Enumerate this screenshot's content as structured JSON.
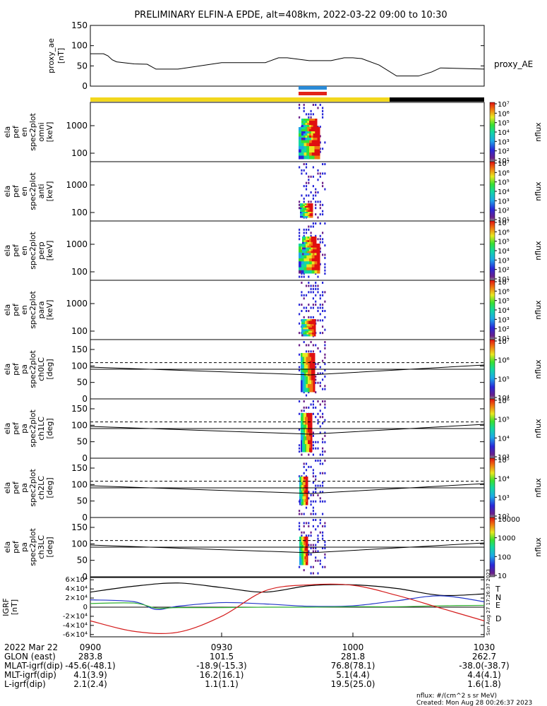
{
  "title": "PRELIMINARY ELFIN-A EPDE, alt=408km, 2022-03-22 09:00 to 10:30",
  "colors": {
    "orbit_sunlit": "#f2d71c",
    "orbit_shadow": "#000000",
    "sci_blue": "#2a8bd8",
    "sci_red": "#e2231a",
    "grf_total": "#000000",
    "grf_N": "#2235c8",
    "grf_E": "#2fb02f",
    "grf_D": "#d41c1c"
  },
  "chart_data": [
    {
      "type": "line",
      "panel": "proxy_ae",
      "ylabel_lines": [
        "proxy_ae",
        "[nT]"
      ],
      "ylim": [
        0,
        150
      ],
      "yticks": [
        "0",
        "50",
        "100",
        "150"
      ],
      "series": [
        {
          "name": "proxy_AE",
          "x": [
            0,
            2,
            3,
            4,
            5,
            6,
            10,
            13,
            15,
            17,
            20,
            30,
            33,
            35,
            40,
            43,
            45,
            50,
            55,
            58,
            60,
            62,
            66,
            70,
            75,
            78,
            80,
            90
          ],
          "y": [
            80,
            80,
            80,
            75,
            65,
            60,
            55,
            54,
            42,
            42,
            42,
            58,
            58,
            58,
            58,
            70,
            70,
            63,
            63,
            70,
            70,
            68,
            52,
            25,
            25,
            35,
            45,
            42
          ]
        }
      ]
    },
    {
      "type": "heatmap",
      "panel": "omni",
      "ylabel_lines": [
        "ela",
        "pef",
        "en",
        "spec2plot",
        "omni",
        "[keV]"
      ],
      "yticks": [
        "100",
        "1000"
      ],
      "colorbar": {
        "label": "nflux",
        "ticks": [
          "10¹",
          "10²",
          "10³",
          "10⁴",
          "10⁵",
          "10⁶",
          "10⁷"
        ]
      }
    },
    {
      "type": "heatmap",
      "panel": "anti",
      "ylabel_lines": [
        "ela",
        "pef",
        "en",
        "spec2plot",
        "anti",
        "[keV]"
      ],
      "yticks": [
        "100",
        "1000"
      ],
      "colorbar": {
        "label": "nflux",
        "ticks": [
          "10¹",
          "10²",
          "10³",
          "10⁴",
          "10⁵",
          "10⁶",
          "10⁷"
        ]
      }
    },
    {
      "type": "heatmap",
      "panel": "perp",
      "ylabel_lines": [
        "ela",
        "pef",
        "en",
        "spec2plot",
        "perp",
        "[keV]"
      ],
      "yticks": [
        "100",
        "1000"
      ],
      "colorbar": {
        "label": "nflux",
        "ticks": [
          "10¹",
          "10²",
          "10³",
          "10⁴",
          "10⁵",
          "10⁶",
          "10⁷"
        ]
      }
    },
    {
      "type": "heatmap",
      "panel": "para",
      "ylabel_lines": [
        "ela",
        "pef",
        "en",
        "spec2plot",
        "para",
        "[keV]"
      ],
      "yticks": [
        "100",
        "1000"
      ],
      "colorbar": {
        "label": "nflux",
        "ticks": [
          "10¹",
          "10²",
          "10³",
          "10⁴",
          "10⁵",
          "10⁶",
          "10⁷"
        ]
      }
    },
    {
      "type": "heatmap",
      "panel": "ch0LC",
      "ylabel_lines": [
        "ela",
        "pef",
        "pa",
        "spec2plot",
        "ch0LC",
        "[deg]"
      ],
      "ylim": [
        0,
        180
      ],
      "yticks": [
        "0",
        "50",
        "100",
        "150"
      ],
      "colorbar": {
        "label": "nflux",
        "ticks": [
          "10⁴",
          "10⁵",
          "10⁶",
          "10⁷"
        ]
      }
    },
    {
      "type": "heatmap",
      "panel": "ch1LC",
      "ylabel_lines": [
        "ela",
        "pef",
        "pa",
        "spec2plot",
        "ch1LC",
        "[deg]"
      ],
      "ylim": [
        0,
        180
      ],
      "yticks": [
        "0",
        "50",
        "100",
        "150"
      ],
      "colorbar": {
        "label": "nflux",
        "ticks": [
          "10³",
          "10⁴",
          "10⁵",
          "10⁶"
        ]
      }
    },
    {
      "type": "heatmap",
      "panel": "ch2LC",
      "ylabel_lines": [
        "ela",
        "pef",
        "pa",
        "spec2plot",
        "ch2LC",
        "[deg]"
      ],
      "ylim": [
        0,
        180
      ],
      "yticks": [
        "0",
        "50",
        "100",
        "150"
      ],
      "colorbar": {
        "label": "nflux",
        "ticks": [
          "10²",
          "10³",
          "10⁴",
          "10⁵"
        ]
      }
    },
    {
      "type": "heatmap",
      "panel": "ch3LC",
      "ylabel_lines": [
        "ela",
        "pef",
        "pa",
        "spec2plot",
        "ch3LC",
        "[deg]"
      ],
      "ylim": [
        0,
        180
      ],
      "yticks": [
        "0",
        "50",
        "100",
        "150"
      ],
      "colorbar": {
        "label": "nflux",
        "ticks": [
          "10",
          "100",
          "1000",
          "10000"
        ]
      }
    },
    {
      "type": "line",
      "panel": "igrf",
      "ylabel_lines": [
        "IGRF",
        "[nT]"
      ],
      "ylim": [
        -65000,
        65000
      ],
      "yticks": [
        "-6×10⁴",
        "-4×10⁴",
        "-2×10⁴",
        "0",
        "2×10⁴",
        "4×10⁴",
        "6×10⁴"
      ],
      "series": [
        {
          "name": "T",
          "x": [
            0,
            10,
            20,
            30,
            40,
            50,
            60,
            70,
            80,
            90
          ],
          "y": [
            33000,
            46000,
            53000,
            43000,
            33000,
            47000,
            49000,
            41000,
            26000,
            29000
          ]
        },
        {
          "name": "N",
          "x": [
            0,
            10,
            15,
            20,
            30,
            40,
            50,
            60,
            70,
            80,
            90
          ],
          "y": [
            16000,
            12000,
            -5000,
            2000,
            10000,
            7000,
            2000,
            3000,
            14000,
            25000,
            12000
          ]
        },
        {
          "name": "E",
          "x": [
            0,
            10,
            15,
            20,
            30,
            40,
            50,
            60,
            70,
            80,
            90
          ],
          "y": [
            8000,
            9000,
            -2000,
            -1000,
            -1000,
            0,
            0,
            1000,
            1000,
            3000,
            4000
          ]
        },
        {
          "name": "D",
          "x": [
            0,
            10,
            20,
            30,
            40,
            50,
            60,
            70,
            80,
            90
          ],
          "y": [
            -30000,
            -53000,
            -55000,
            -20000,
            36000,
            49000,
            48000,
            26000,
            -2000,
            -30000
          ]
        }
      ],
      "legend": [
        "T",
        "N",
        "E",
        "D"
      ]
    }
  ],
  "side_stamp": "Sun Aug 27 17:26:37 2023",
  "ephemeris": {
    "labels": [
      "2022 Mar 22",
      "GLON (east)",
      "MLAT-igrf(dip)",
      "MLT-igrf(dip)",
      "L-igrf(dip)"
    ],
    "columns": [
      {
        "time": "0900",
        "values": [
          "283.8",
          "-45.6(-48.1)",
          "4.1(3.9)",
          "2.1(2.4)"
        ]
      },
      {
        "time": "0930",
        "values": [
          "101.5",
          "-18.9(-15.3)",
          "16.2(16.1)",
          "1.1(1.1)"
        ]
      },
      {
        "time": "1000",
        "values": [
          "281.8",
          "76.8(78.1)",
          "5.1(4.4)",
          "19.5(25.0)"
        ]
      },
      {
        "time": "1030",
        "values": [
          "262.7",
          "-38.0(-38.7)",
          "4.4(4.1)",
          "1.6(1.8)"
        ]
      }
    ]
  },
  "footer": {
    "units": "nflux: #/(cm^2 s sr MeV)",
    "created": "Created: Mon Aug 28 00:26:37 2023"
  }
}
